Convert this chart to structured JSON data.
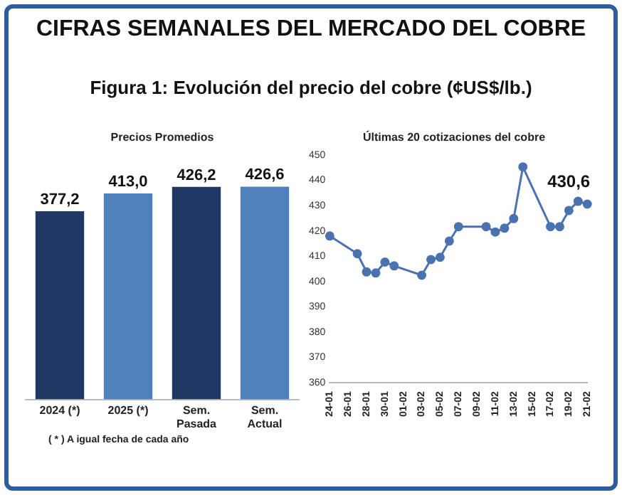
{
  "chart_data": [
    {
      "type": "other",
      "title": "CIFRAS SEMANALES DEL MERCADO DEL COBRE",
      "subtitle": "Figura 1: Evolución del precio del cobre (¢US$/lb.)"
    },
    {
      "type": "bar",
      "title": "Precios Promedios",
      "categories": [
        "2024 (*)",
        "2025 (*)",
        "Sem. Pasada",
        "Sem. Actual"
      ],
      "values": [
        377.2,
        413.0,
        426.2,
        426.6
      ],
      "colors": [
        "#1f3864",
        "#4f81bd",
        "#1f3864",
        "#4f81bd"
      ],
      "value_labels": [
        "377,2",
        "413,0",
        "426,2",
        "426,6"
      ],
      "tick_labels": "x",
      "grid": false,
      "annotations": [
        "( * ) A igual fecha de cada año"
      ]
    },
    {
      "type": "line",
      "title": "Últimas 20 cotizaciones del cobre",
      "categories": [
        "24-01",
        null,
        "26-01",
        null,
        "28-01",
        null,
        "30-01",
        null,
        "01-02",
        null,
        "03-02",
        null,
        "05-02",
        null,
        "07-02",
        null,
        "09-02",
        null,
        "11-02",
        null,
        "13-02",
        null,
        "15-02",
        null,
        "17-02",
        null,
        "19-02",
        null,
        "21-02"
      ],
      "series": [
        {
          "color": "#4a72b0",
          "values": [
            418,
            null,
            null,
            411,
            403.8,
            403.4,
            407.7,
            406.2,
            null,
            null,
            402.5,
            408.7,
            409.6,
            416,
            421.7,
            null,
            null,
            421.7,
            419.6,
            421.1,
            424.9,
            445.3,
            null,
            null,
            421.7,
            421.7,
            428.1,
            431.7,
            430.6
          ]
        }
      ],
      "ylim": [
        360,
        450
      ],
      "yticks": [
        360,
        370,
        380,
        390,
        400,
        410,
        420,
        430,
        440,
        450
      ],
      "grid": false,
      "marker": "circle",
      "annotations": [
        {
          "text": "430,6",
          "x": "21-02",
          "y": 430.6
        }
      ]
    }
  ]
}
